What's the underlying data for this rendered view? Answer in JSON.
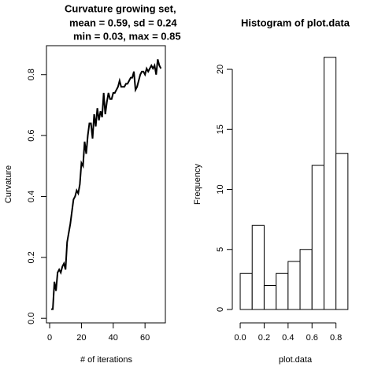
{
  "chart_data": [
    {
      "type": "line",
      "title": [
        "Curvature growing set,",
        "mean = 0.59, sd = 0.24",
        "min = 0.03, max = 0.85"
      ],
      "xlabel": "# of iterations",
      "ylabel": "Curvature",
      "color": "#000000",
      "x": [
        1,
        2,
        3,
        4,
        5,
        6,
        7,
        8,
        9,
        10,
        11,
        12,
        13,
        14,
        15,
        16,
        17,
        18,
        19,
        20,
        21,
        22,
        23,
        24,
        25,
        26,
        27,
        28,
        29,
        30,
        31,
        32,
        33,
        34,
        35,
        36,
        37,
        38,
        39,
        40,
        41,
        42,
        43,
        44,
        45,
        46,
        47,
        48,
        49,
        50,
        51,
        52,
        53,
        54,
        55,
        56,
        57,
        58,
        59,
        60,
        61,
        62,
        63,
        64,
        65,
        66,
        67,
        68,
        69,
        70
      ],
      "values": [
        0.03,
        0.03,
        0.12,
        0.09,
        0.15,
        0.16,
        0.15,
        0.17,
        0.18,
        0.16,
        0.25,
        0.28,
        0.31,
        0.35,
        0.39,
        0.4,
        0.42,
        0.41,
        0.44,
        0.51,
        0.5,
        0.58,
        0.54,
        0.6,
        0.64,
        0.64,
        0.59,
        0.67,
        0.63,
        0.69,
        0.65,
        0.68,
        0.66,
        0.74,
        0.67,
        0.71,
        0.74,
        0.72,
        0.72,
        0.74,
        0.74,
        0.75,
        0.76,
        0.78,
        0.76,
        0.76,
        0.76,
        0.77,
        0.77,
        0.78,
        0.79,
        0.79,
        0.81,
        0.75,
        0.76,
        0.78,
        0.8,
        0.81,
        0.81,
        0.8,
        0.82,
        0.81,
        0.82,
        0.83,
        0.82,
        0.83,
        0.8,
        0.85,
        0.83,
        0.82
      ],
      "xlim": [
        -2,
        72.8
      ],
      "ylim": [
        -0.015,
        0.895
      ],
      "xticks": [
        0,
        20,
        40,
        60
      ],
      "yticks": [
        {
          "value": 0,
          "label": "0.0"
        },
        {
          "value": 0.2,
          "label": "0.2"
        },
        {
          "value": 0.4,
          "label": "0.4"
        },
        {
          "value": 0.6,
          "label": "0.6"
        },
        {
          "value": 0.8,
          "label": "0.8"
        }
      ],
      "box": true
    },
    {
      "type": "histogram",
      "title": [
        "Histogram of plot.data"
      ],
      "xlabel": "plot.data",
      "ylabel": "Frequency",
      "color": "#ffffff",
      "bins": [
        0,
        0.1,
        0.2,
        0.3,
        0.4,
        0.5,
        0.6,
        0.7,
        0.8,
        0.9
      ],
      "values": [
        3,
        7,
        2,
        3,
        4,
        5,
        12,
        21,
        13
      ],
      "xlim": [
        -0.066,
        0.934
      ],
      "ylim": [
        -1.115,
        21.97
      ],
      "xticks": [
        {
          "value": 0,
          "label": "0.0"
        },
        {
          "value": 0.2,
          "label": "0.2"
        },
        {
          "value": 0.4,
          "label": "0.4"
        },
        {
          "value": 0.6,
          "label": "0.6"
        },
        {
          "value": 0.8,
          "label": "0.8"
        }
      ],
      "yticks": [
        0,
        5,
        10,
        15,
        20
      ],
      "box": false
    }
  ]
}
